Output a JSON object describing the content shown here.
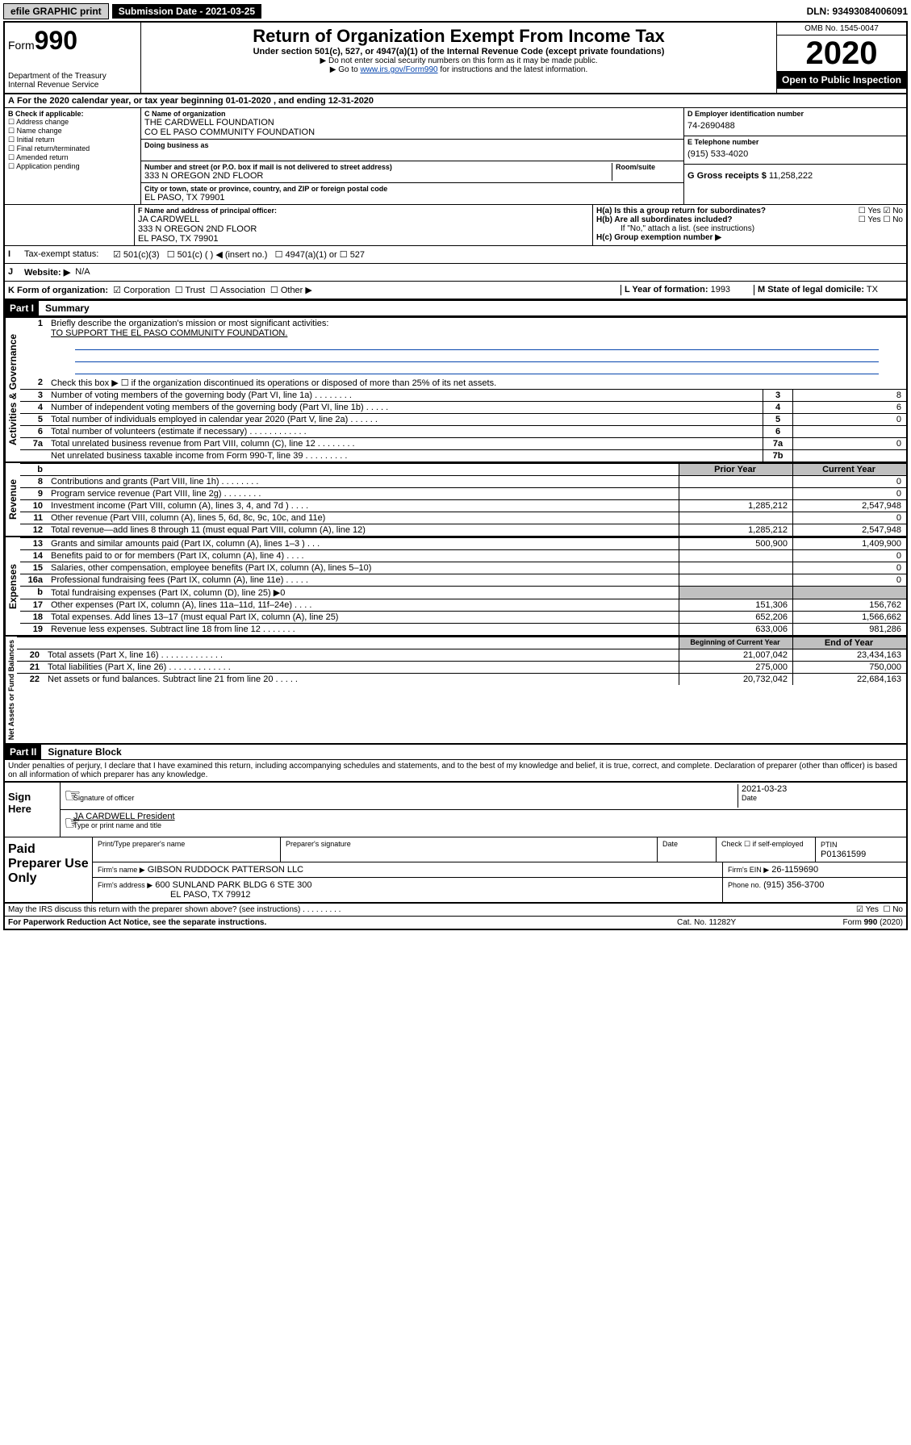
{
  "top": {
    "efile": "efile GRAPHIC print",
    "submission": "Submission Date - 2021-03-25",
    "dln": "DLN: 93493084006091"
  },
  "header": {
    "form_prefix": "Form",
    "form_no": "990",
    "dept": "Department of the Treasury",
    "irs": "Internal Revenue Service",
    "title": "Return of Organization Exempt From Income Tax",
    "sub1": "Under section 501(c), 527, or 4947(a)(1) of the Internal Revenue Code (except private foundations)",
    "sub2": "▶ Do not enter social security numbers on this form as it may be made public.",
    "sub3_pre": "▶ Go to ",
    "sub3_link": "www.irs.gov/Form990",
    "sub3_post": " for instructions and the latest information.",
    "omb": "OMB No. 1545-0047",
    "year": "2020",
    "open": "Open to Public Inspection"
  },
  "period": {
    "line": "For the 2020 calendar year, or tax year beginning 01-01-2020     , and ending 12-31-2020"
  },
  "boxB": {
    "label": "B Check if applicable:",
    "items": [
      "Address change",
      "Name change",
      "Initial return",
      "Final return/terminated",
      "Amended return",
      "Application pending"
    ]
  },
  "boxC": {
    "name_label": "C Name of organization",
    "name1": "THE CARDWELL FOUNDATION",
    "name2": "CO EL PASO COMMUNITY FOUNDATION",
    "dba_label": "Doing business as",
    "addr_label": "Number and street (or P.O. box if mail is not delivered to street address)",
    "room_label": "Room/suite",
    "addr": "333 N OREGON 2ND FLOOR",
    "city_label": "City or town, state or province, country, and ZIP or foreign postal code",
    "city": "EL PASO, TX  79901"
  },
  "boxD": {
    "label": "D Employer identification number",
    "val": "74-2690488"
  },
  "boxE": {
    "label": "E Telephone number",
    "val": "(915) 533-4020"
  },
  "boxG": {
    "label": "G Gross receipts $",
    "val": "11,258,222"
  },
  "boxF": {
    "label": "F  Name and address of principal officer:",
    "name": "JA CARDWELL",
    "addr1": "333 N OREGON 2ND FLOOR",
    "addr2": "EL PASO, TX  79901"
  },
  "boxH": {
    "a": "H(a)  Is this a group return for subordinates?",
    "b": "H(b)  Are all subordinates included?",
    "b_note": "If \"No,\" attach a list. (see instructions)",
    "c": "H(c)  Group exemption number ▶",
    "yes": "Yes",
    "no": "No"
  },
  "taxexempt": {
    "label": "Tax-exempt status:",
    "c3": "501(c)(3)",
    "c": "501(c) (  ) ◀ (insert no.)",
    "a1": "4947(a)(1) or",
    "s527": "527"
  },
  "website": {
    "label": "Website: ▶",
    "val": "N/A"
  },
  "boxK": {
    "label": "K Form of organization:",
    "corp": "Corporation",
    "trust": "Trust",
    "assoc": "Association",
    "other": "Other ▶"
  },
  "boxL": {
    "label": "L Year of formation:",
    "val": "1993"
  },
  "boxM": {
    "label": "M State of legal domicile:",
    "val": "TX"
  },
  "part1": {
    "hdr": "Part I",
    "title": "Summary"
  },
  "summary_top": {
    "line1": "Briefly describe the organization's mission or most significant activities:",
    "mission": "TO SUPPORT THE EL PASO COMMUNITY FOUNDATION.",
    "line2": "Check this box ▶ ☐  if the organization discontinued its operations or disposed of more than 25% of its net assets."
  },
  "gov_rows": [
    {
      "n": "3",
      "t": "Number of voting members of the governing body (Part VI, line 1a)   .    .    .    .    .    .    .    .",
      "box": "3",
      "v": "8"
    },
    {
      "n": "4",
      "t": "Number of independent voting members of the governing body (Part VI, line 1b)   .    .    .    .    .",
      "box": "4",
      "v": "6"
    },
    {
      "n": "5",
      "t": "Total number of individuals employed in calendar year 2020 (Part V, line 2a)   .    .    .    .    .    .",
      "box": "5",
      "v": "0"
    },
    {
      "n": "6",
      "t": "Total number of volunteers (estimate if necessary)   .    .    .    .    .    .    .    .    .    .    .    .",
      "box": "6",
      "v": ""
    },
    {
      "n": "7a",
      "t": "Total unrelated business revenue from Part VIII, column (C), line 12   .    .    .    .    .    .    .    .",
      "box": "7a",
      "v": "0"
    },
    {
      "n": "",
      "t": "Net unrelated business taxable income from Form 990-T, line 39   .    .    .    .    .    .    .    .    .",
      "box": "7b",
      "v": ""
    }
  ],
  "rev_hdr": {
    "b": "b",
    "prior": "Prior Year",
    "curr": "Current Year"
  },
  "rev_rows": [
    {
      "n": "8",
      "t": "Contributions and grants (Part VIII, line 1h)   .    .    .    .    .    .    .    .",
      "p": "",
      "c": "0"
    },
    {
      "n": "9",
      "t": "Program service revenue (Part VIII, line 2g)   .    .    .    .    .    .    .    .",
      "p": "",
      "c": "0"
    },
    {
      "n": "10",
      "t": "Investment income (Part VIII, column (A), lines 3, 4, and 7d )   .    .    .    .",
      "p": "1,285,212",
      "c": "2,547,948"
    },
    {
      "n": "11",
      "t": "Other revenue (Part VIII, column (A), lines 5, 6d, 8c, 9c, 10c, and 11e)",
      "p": "",
      "c": "0"
    },
    {
      "n": "12",
      "t": "Total revenue—add lines 8 through 11 (must equal Part VIII, column (A), line 12)",
      "p": "1,285,212",
      "c": "2,547,948"
    }
  ],
  "exp_rows": [
    {
      "n": "13",
      "t": "Grants and similar amounts paid (Part IX, column (A), lines 1–3 )   .    .    .",
      "p": "500,900",
      "c": "1,409,900"
    },
    {
      "n": "14",
      "t": "Benefits paid to or for members (Part IX, column (A), line 4)   .    .    .    .",
      "p": "",
      "c": "0"
    },
    {
      "n": "15",
      "t": "Salaries, other compensation, employee benefits (Part IX, column (A), lines 5–10)",
      "p": "",
      "c": "0"
    },
    {
      "n": "16a",
      "t": "Professional fundraising fees (Part IX, column (A), line 11e)   .    .    .    .    .",
      "p": "",
      "c": "0"
    },
    {
      "n": "b",
      "t": "Total fundraising expenses (Part IX, column (D), line 25) ▶0",
      "p": "grey",
      "c": "grey"
    },
    {
      "n": "17",
      "t": "Other expenses (Part IX, column (A), lines 11a–11d, 11f–24e)   .    .    .    .",
      "p": "151,306",
      "c": "156,762"
    },
    {
      "n": "18",
      "t": "Total expenses. Add lines 13–17 (must equal Part IX, column (A), line 25)",
      "p": "652,206",
      "c": "1,566,662"
    },
    {
      "n": "19",
      "t": "Revenue less expenses. Subtract line 18 from line 12   .    .    .    .    .    .    .",
      "p": "633,006",
      "c": "981,286"
    }
  ],
  "na_hdr": {
    "beg": "Beginning of Current Year",
    "end": "End of Year"
  },
  "na_rows": [
    {
      "n": "20",
      "t": "Total assets (Part X, line 16)   .    .    .    .    .    .    .    .    .    .    .    .    .",
      "p": "21,007,042",
      "c": "23,434,163"
    },
    {
      "n": "21",
      "t": "Total liabilities (Part X, line 26)   .    .    .    .    .    .    .    .    .    .    .    .    .",
      "p": "275,000",
      "c": "750,000"
    },
    {
      "n": "22",
      "t": "Net assets or fund balances. Subtract line 21 from line 20   .    .    .    .    .",
      "p": "20,732,042",
      "c": "22,684,163"
    }
  ],
  "part2": {
    "hdr": "Part II",
    "title": "Signature Block"
  },
  "perjury": "Under penalties of perjury, I declare that I have examined this return, including accompanying schedules and statements, and to the best of my knowledge and belief, it is true, correct, and complete. Declaration of preparer (other than officer) is based on all information of which preparer has any knowledge.",
  "sign": {
    "here": "Sign Here",
    "sig_officer": "Signature of officer",
    "date": "2021-03-23",
    "date_lbl": "Date",
    "name": "JA CARDWELL President",
    "name_lbl": "Type or print name and title"
  },
  "paid": {
    "title": "Paid Preparer Use Only",
    "h1": "Print/Type preparer's name",
    "h2": "Preparer's signature",
    "h3": "Date",
    "h4_pre": "Check ☐ if self-employed",
    "h5": "PTIN",
    "ptin": "P01361599",
    "firm_lbl": "Firm's name    ▶",
    "firm": "GIBSON RUDDOCK PATTERSON LLC",
    "ein_lbl": "Firm's EIN ▶",
    "ein": "26-1159690",
    "addr_lbl": "Firm's address ▶",
    "addr1": "600 SUNLAND PARK BLDG 6 STE 300",
    "addr2": "EL PASO, TX  79912",
    "phone_lbl": "Phone no.",
    "phone": "(915) 356-3700"
  },
  "discuss": {
    "q": "May the IRS discuss this return with the preparer shown above? (see instructions)   .    .    .    .    .    .    .    .    .",
    "yes": "Yes",
    "no": "No"
  },
  "footer": {
    "pra": "For Paperwork Reduction Act Notice, see the separate instructions.",
    "cat": "Cat. No. 11282Y",
    "form": "Form 990 (2020)"
  },
  "labels": {
    "vert_gov": "Activities & Governance",
    "vert_rev": "Revenue",
    "vert_exp": "Expenses",
    "vert_na": "Net Assets or Fund Balances"
  }
}
